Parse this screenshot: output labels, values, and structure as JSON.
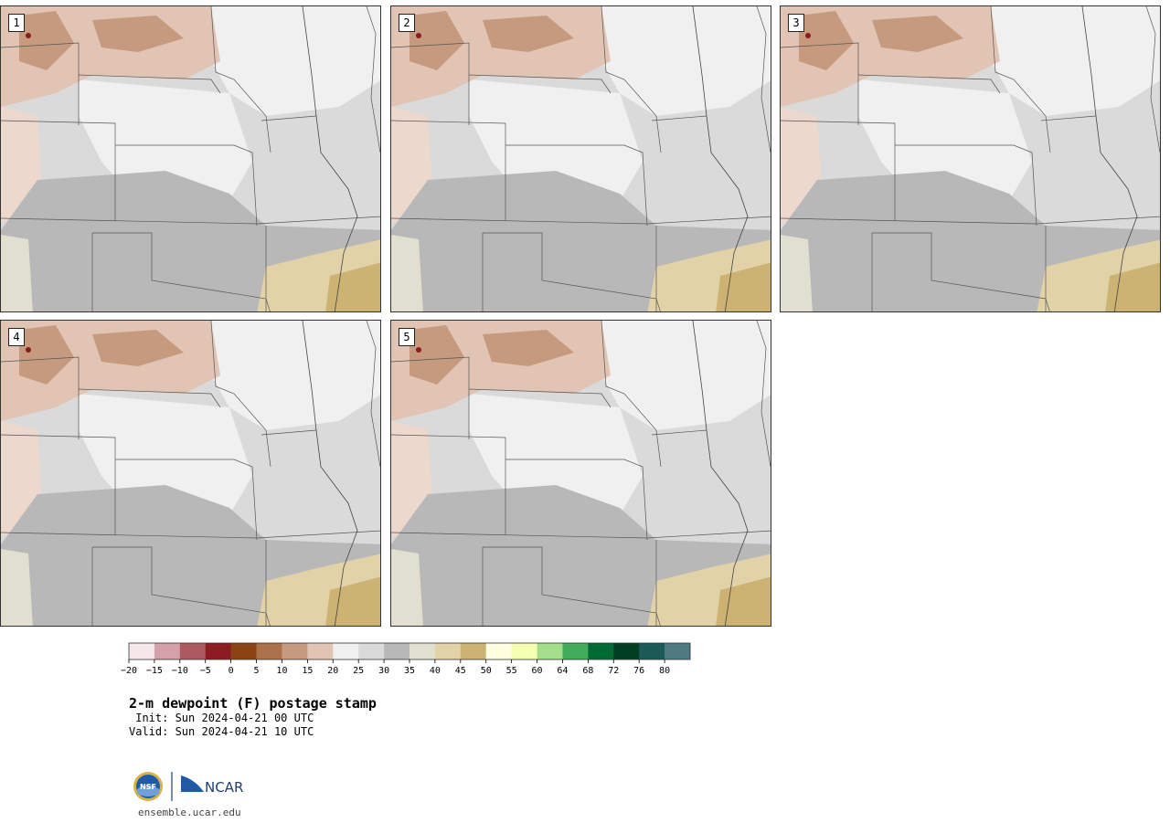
{
  "panels": [
    {
      "label": "1"
    },
    {
      "label": "2"
    },
    {
      "label": "3"
    },
    {
      "label": "4"
    },
    {
      "label": "5"
    }
  ],
  "colorbar": {
    "ticks": [
      "−20",
      "−15",
      "−10",
      "−5",
      "0",
      "5",
      "10",
      "15",
      "20",
      "25",
      "30",
      "35",
      "40",
      "45",
      "50",
      "55",
      "60",
      "64",
      "68",
      "72",
      "76",
      "80"
    ],
    "colors": [
      "#f6e8ea",
      "#d3a1a7",
      "#ac5a60",
      "#8a1c22",
      "#8a4311",
      "#ab714a",
      "#c59a7e",
      "#e1c4b3",
      "#f0f0f0",
      "#dadada",
      "#b8b8b8",
      "#e1e0d0",
      "#e2d2a8",
      "#ccb373",
      "#ffffe2",
      "#f6ffb0",
      "#a5de8a",
      "#40ac5c",
      "#006a35",
      "#003f24",
      "#1b5a57",
      "#4e7b82"
    ]
  },
  "title": "2-m dewpoint (F) postage stamp",
  "init": " Init: Sun 2024-04-21 00 UTC",
  "valid": "Valid: Sun 2024-04-21 10 UTC",
  "logo": {
    "nsf": "NSF",
    "ncar": "NCAR"
  },
  "url": "ensemble.ucar.edu"
}
